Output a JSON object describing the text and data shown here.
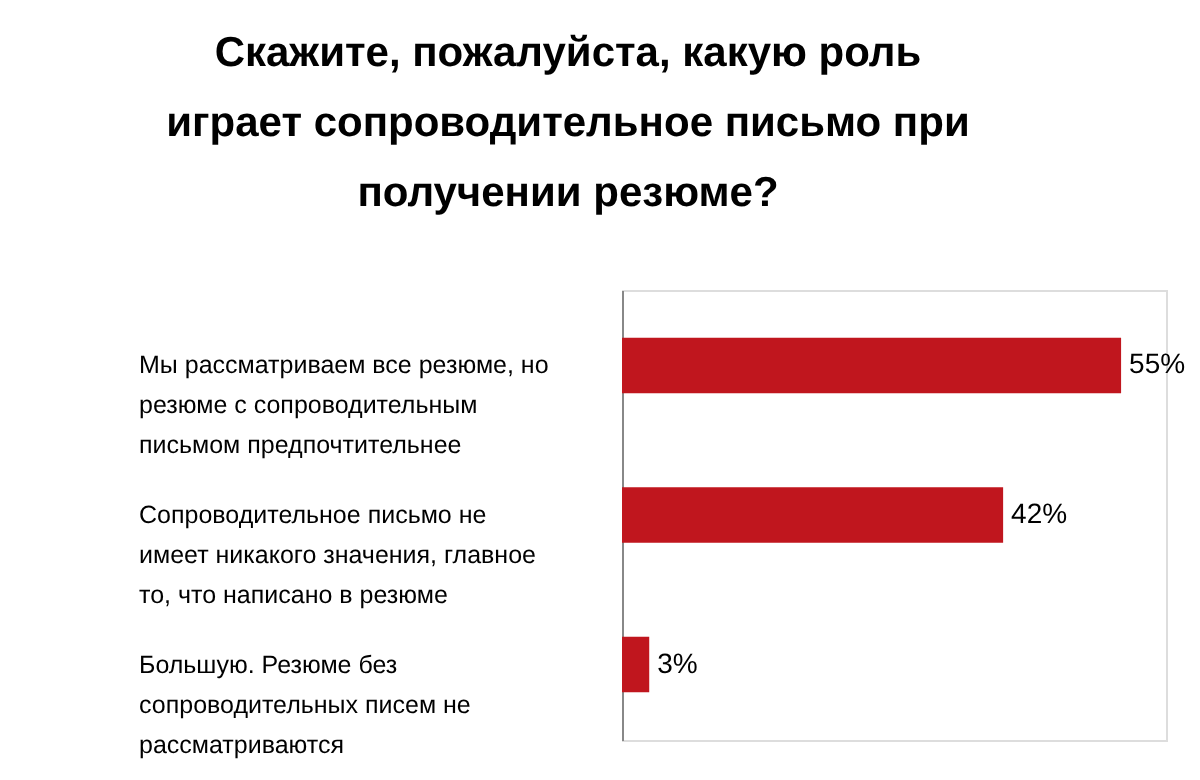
{
  "chart_data": {
    "type": "bar",
    "orientation": "horizontal",
    "title": "Скажите, пожалуйста, какую роль\nиграет сопроводительное письмо при\nполучении резюме?",
    "categories": [
      "Мы рассматриваем все резюме, но\nрезюме с сопроводительным\nписьмом предпочтительнее",
      "Сопроводительное письмо не\nимеет никакого значения, главное\nто, что написано в резюме",
      "Большую. Резюме без\nсопроводительных писем не\nрассматриваются"
    ],
    "values": [
      55,
      42,
      3
    ],
    "value_labels": [
      "55%",
      "42%",
      "3%"
    ],
    "color": "#c0161e",
    "grid": false
  }
}
